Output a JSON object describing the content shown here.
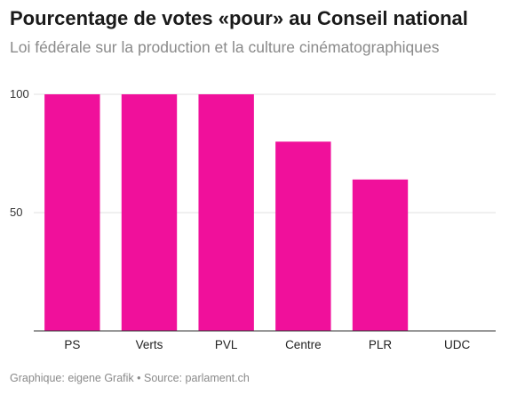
{
  "chart_data": {
    "type": "bar",
    "title": "Pourcentage de votes «pour» au Conseil national",
    "subtitle": "Loi fédérale sur la production et la culture cinématographiques",
    "categories": [
      "PS",
      "Verts",
      "PVL",
      "Centre",
      "PLR",
      "UDC"
    ],
    "values": [
      100,
      100,
      100,
      80,
      64,
      0
    ],
    "yticks": [
      50,
      100
    ],
    "ylim": [
      0,
      100
    ],
    "grid": true,
    "bar_color": "#f0109b"
  },
  "footer": {
    "text": "Graphique: eigene Grafik • Source: parlament.ch"
  }
}
